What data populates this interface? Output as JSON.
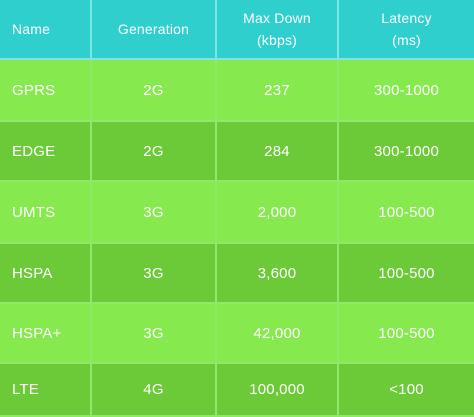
{
  "headers": {
    "name": "Name",
    "generation": "Generation",
    "max_down_line1": "Max Down",
    "max_down_line2": "(kbps)",
    "latency_line1": "Latency",
    "latency_line2": "(ms)"
  },
  "rows": [
    {
      "name": "GPRS",
      "generation": "2G",
      "max_down": "237",
      "latency": "300-1000"
    },
    {
      "name": "EDGE",
      "generation": "2G",
      "max_down": "284",
      "latency": "300-1000"
    },
    {
      "name": "UMTS",
      "generation": "3G",
      "max_down": "2,000",
      "latency": "100-500"
    },
    {
      "name": "HSPA",
      "generation": "3G",
      "max_down": "3,600",
      "latency": "100-500"
    },
    {
      "name": "HSPA+",
      "generation": "3G",
      "max_down": "42,000",
      "latency": "100-500"
    },
    {
      "name": "LTE",
      "generation": "4G",
      "max_down": "100,000",
      "latency": "<100"
    }
  ],
  "colors": {
    "header": "#2fcfce",
    "row_light": "#86e94e",
    "row_dark": "#6cc937",
    "text": "#ffffff"
  }
}
